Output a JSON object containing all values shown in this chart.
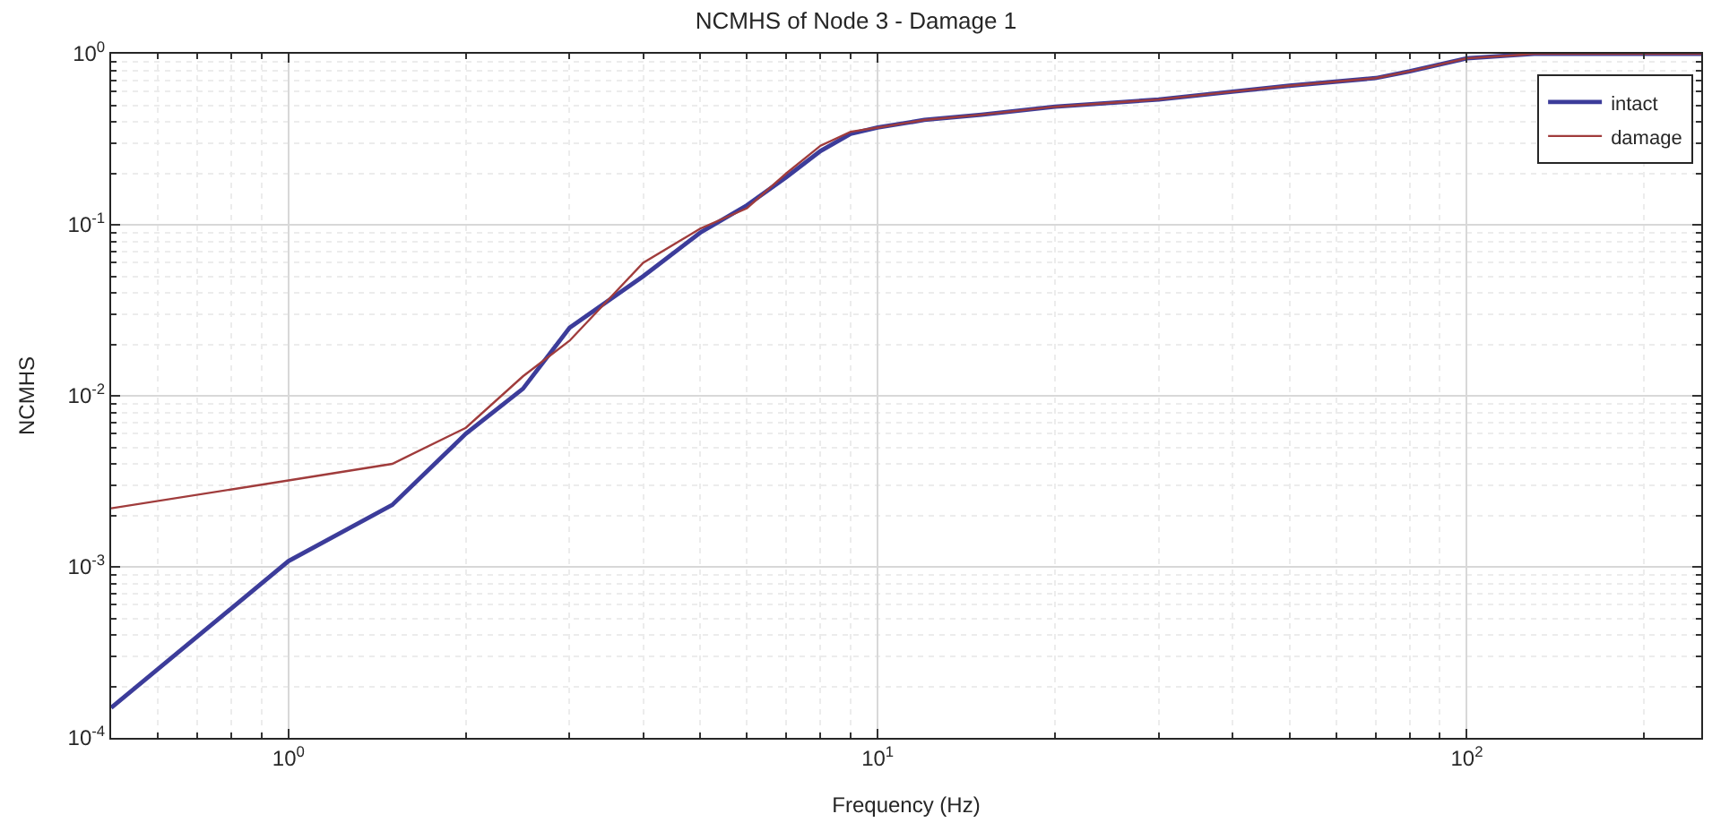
{
  "chart_data": {
    "type": "line",
    "title": "NCMHS of Node 3 - Damage 1",
    "xlabel": "Frequency (Hz)",
    "ylabel": "NCMHS",
    "log": "xy",
    "grid": true,
    "legend": "top right",
    "line_style": "solid",
    "marker": "none",
    "xlim": [
      0.5,
      250
    ],
    "ylim": [
      0.0001,
      1
    ],
    "xticks": [
      {
        "value": 1,
        "label": "10$^{0}$"
      },
      {
        "value": 10,
        "label": "10$^{1}$"
      },
      {
        "value": 100,
        "label": "10$^{2}$"
      }
    ],
    "yticks": [
      {
        "value": 0.0001,
        "label": "10$^{-4}$"
      },
      {
        "value": 0.001,
        "label": "10$^{-3}$"
      },
      {
        "value": 0.01,
        "label": "10$^{-2}$"
      },
      {
        "value": 0.1,
        "label": "10$^{-1}$"
      },
      {
        "value": 1,
        "label": "10$^{0}$"
      }
    ],
    "x": [
      0.5,
      1,
      1.5,
      2,
      2.5,
      3,
      4,
      5,
      6,
      7,
      8,
      9,
      10,
      12,
      15,
      20,
      30,
      40,
      50,
      70,
      80,
      100,
      120,
      130,
      250
    ],
    "series": [
      {
        "name": "intact",
        "color": "#3c3c9a",
        "values": [
          0.00015,
          0.00108,
          0.0023,
          0.006,
          0.011,
          0.025,
          0.05,
          0.09,
          0.13,
          0.19,
          0.27,
          0.34,
          0.37,
          0.41,
          0.44,
          0.49,
          0.54,
          0.6,
          0.65,
          0.72,
          0.79,
          0.94,
          0.98,
          1,
          1
        ]
      },
      {
        "name": "damage",
        "color": "#a03c3c",
        "values": [
          0.0022,
          0.0032,
          0.004,
          0.0065,
          0.013,
          0.021,
          0.06,
          0.095,
          0.125,
          0.2,
          0.29,
          0.35,
          0.37,
          0.41,
          0.44,
          0.49,
          0.54,
          0.6,
          0.65,
          0.72,
          0.79,
          0.94,
          0.98,
          1,
          1
        ]
      }
    ]
  }
}
